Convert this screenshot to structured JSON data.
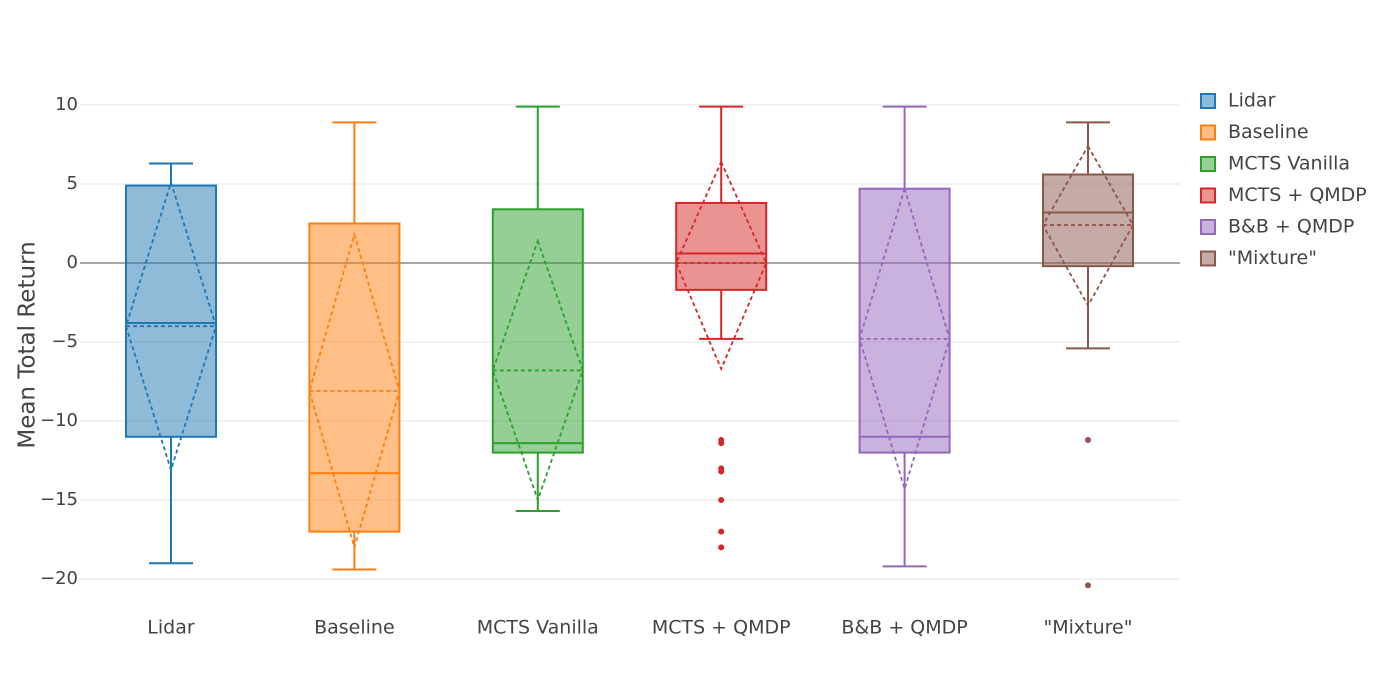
{
  "chart_data": {
    "type": "box",
    "ylabel": "Mean Total Return",
    "xlabel": "",
    "ylim": [
      -21.5,
      12
    ],
    "yticks": [
      10,
      5,
      0,
      -5,
      -10,
      -15,
      -20
    ],
    "ytick_labels": [
      "10",
      "5",
      "0",
      "−5",
      "−10",
      "−15",
      "−20"
    ],
    "grid": true,
    "zeroline": true,
    "legend_position": "top-right",
    "categories": [
      "Lidar",
      "Baseline",
      "MCTS Vanilla",
      "MCTS + QMDP",
      "B&B + QMDP",
      "\"Mixture\""
    ],
    "series": [
      {
        "name": "Lidar",
        "color": "#1f77b4",
        "lower_whisker": -19,
        "q1": -11,
        "median": -3.8,
        "q3": 4.9,
        "upper_whisker": 6.3,
        "mean": -4,
        "mean_minus_sd": -13.1,
        "mean_plus_sd": 5.1,
        "outliers": []
      },
      {
        "name": "Baseline",
        "color": "#ff7f0e",
        "lower_whisker": -19.4,
        "q1": -17,
        "median": -13.3,
        "q3": 2.5,
        "upper_whisker": 8.9,
        "mean": -8.1,
        "mean_minus_sd": -18,
        "mean_plus_sd": 1.8,
        "outliers": []
      },
      {
        "name": "MCTS Vanilla",
        "color": "#2ca02c",
        "lower_whisker": -15.7,
        "q1": -12,
        "median": -11.4,
        "q3": 3.4,
        "upper_whisker": 9.9,
        "mean": -6.8,
        "mean_minus_sd": -15,
        "mean_plus_sd": 1.4,
        "outliers": []
      },
      {
        "name": "MCTS + QMDP",
        "color": "#d62728",
        "lower_whisker": -4.8,
        "q1": -1.7,
        "median": 0.6,
        "q3": 3.8,
        "upper_whisker": 9.9,
        "mean": 0,
        "mean_minus_sd": -6.7,
        "mean_plus_sd": 6.4,
        "outliers": [
          -11.2,
          -11.4,
          -13,
          -13.2,
          -15,
          -17,
          -18
        ]
      },
      {
        "name": "B&B + QMDP",
        "color": "#9467bd",
        "lower_whisker": -19.2,
        "q1": -12,
        "median": -11,
        "q3": 4.7,
        "upper_whisker": 9.9,
        "mean": -4.8,
        "mean_minus_sd": -14.3,
        "mean_plus_sd": 4.7,
        "outliers": []
      },
      {
        "name": "\"Mixture\"",
        "color": "#8c564b",
        "lower_whisker": -5.4,
        "q1": -0.2,
        "median": 3.2,
        "q3": 5.6,
        "upper_whisker": 8.9,
        "mean": 2.4,
        "mean_minus_sd": -2.7,
        "mean_plus_sd": 7.4,
        "outliers": [
          -11.2,
          -20.4
        ]
      }
    ]
  }
}
